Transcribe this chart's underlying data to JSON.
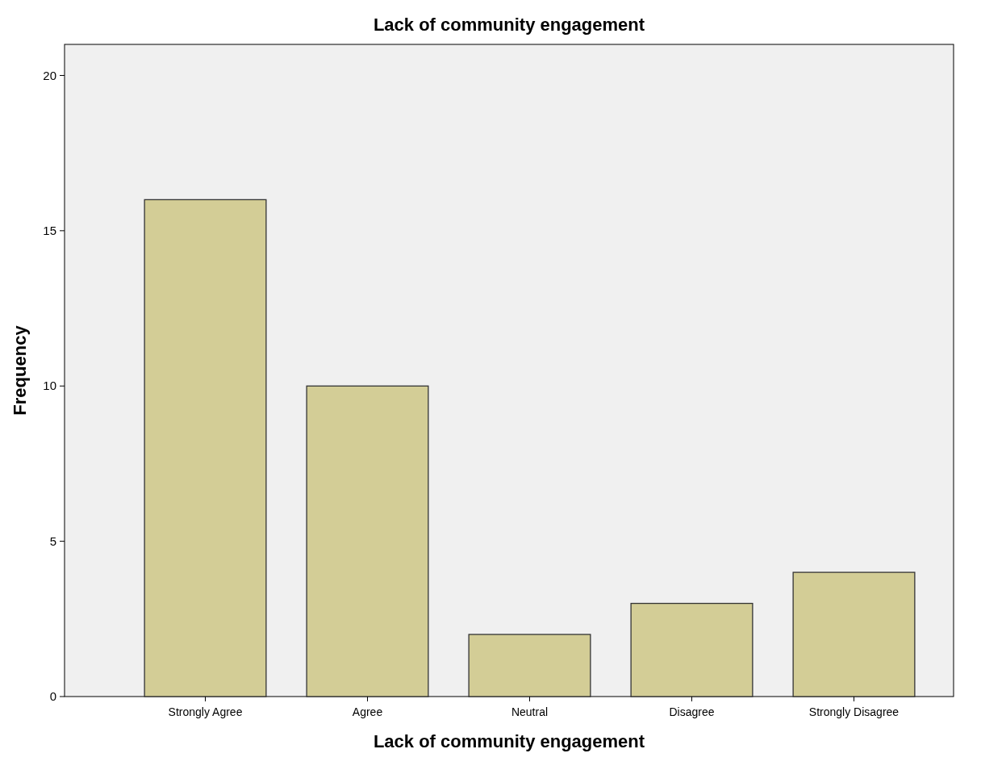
{
  "chart_data": {
    "type": "bar",
    "title": "Lack of community engagement",
    "xlabel": "Lack of community engagement",
    "ylabel": "Frequency",
    "categories": [
      "Strongly Agree",
      "Agree",
      "Neutral",
      "Disagree",
      "Strongly Disagree"
    ],
    "values": [
      16,
      10,
      2,
      3,
      4
    ],
    "color": "#d3cd96",
    "ylim": [
      0,
      21
    ],
    "yticks": [
      0,
      5,
      10,
      15,
      20
    ],
    "grid": false
  }
}
